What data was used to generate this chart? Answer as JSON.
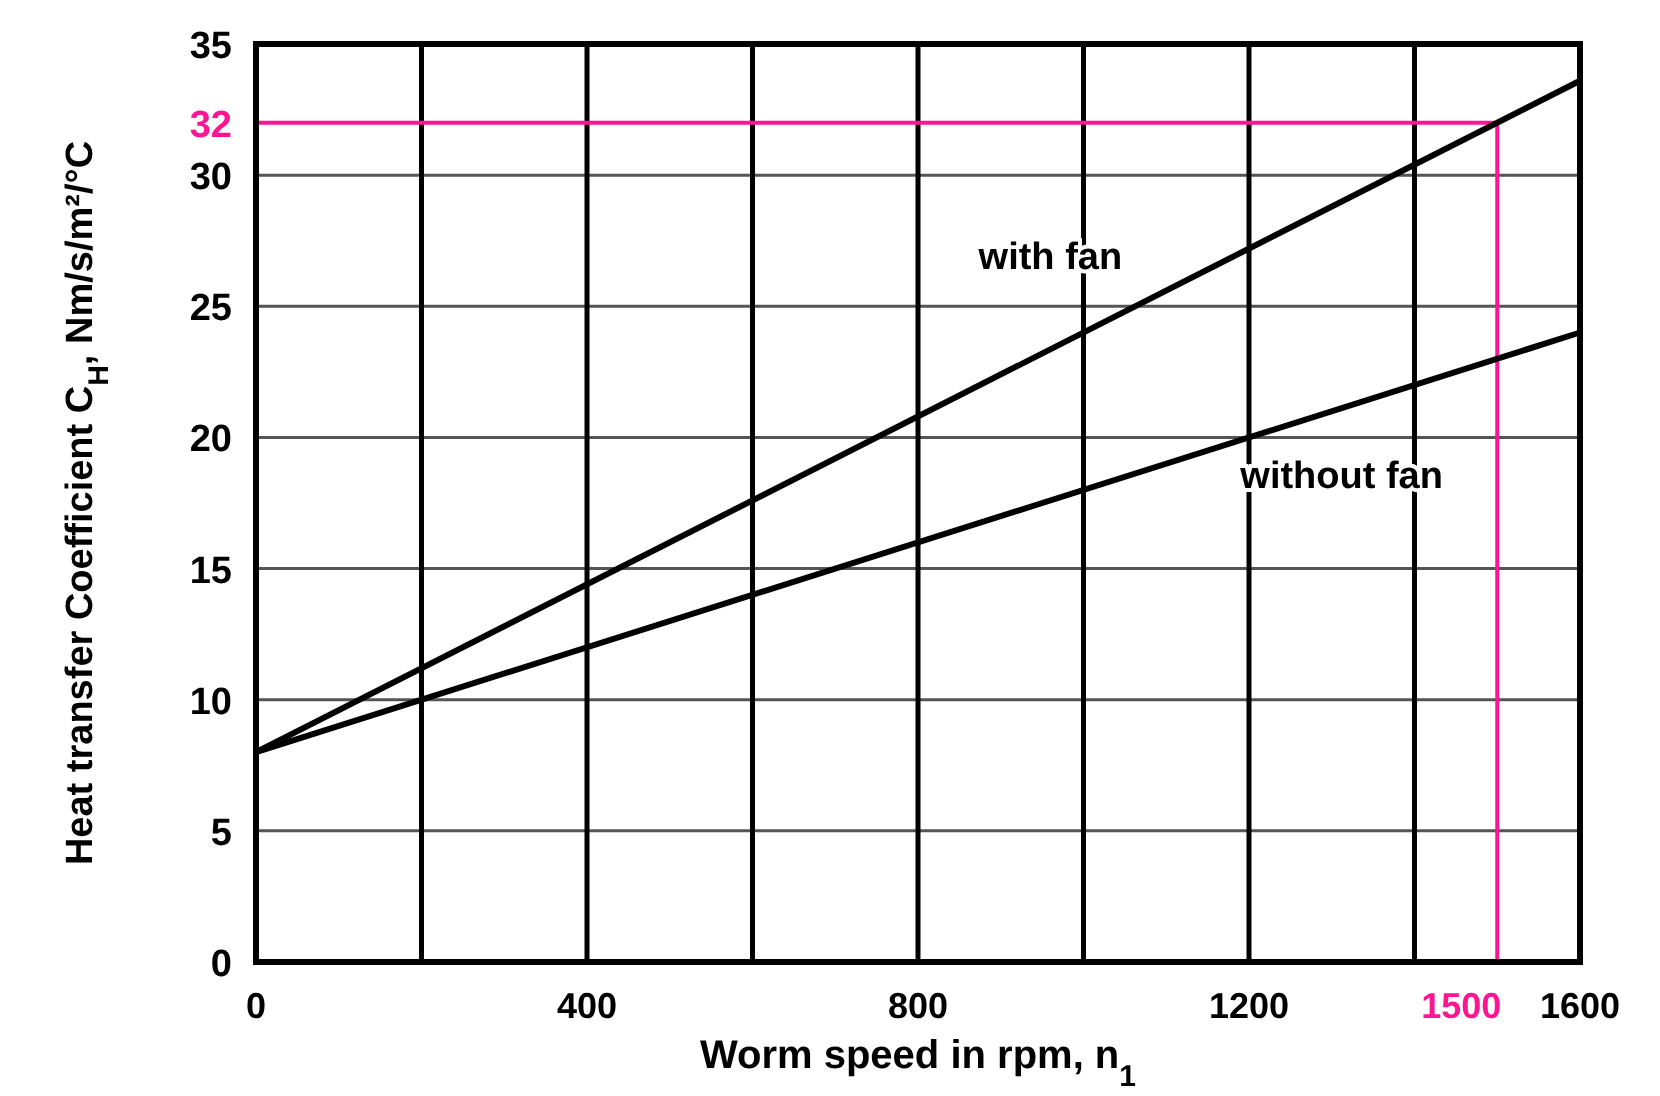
{
  "chart_data": {
    "type": "line",
    "xlabel": "Worm speed in rpm, n$_{1}$",
    "ylabel": "Heat transfer Coefficient C$_{H}$, Nm/s/m²/°C",
    "x": [
      0,
      1600
    ],
    "series": [
      {
        "name": "with fan",
        "color": "#000000",
        "values": [
          8,
          33.6
        ]
      },
      {
        "name": "without fan",
        "color": "#000000",
        "values": [
          8,
          24
        ]
      }
    ],
    "xlim": [
      0,
      1600
    ],
    "xticks": [
      0,
      {
        "value": 200,
        "label": null
      },
      400,
      {
        "value": 600,
        "label": null
      },
      800,
      {
        "value": 1000,
        "label": null
      },
      1200,
      {
        "value": 1400,
        "label": null
      },
      1600
    ],
    "ylim": [
      0,
      35
    ],
    "yticks": [
      0,
      5,
      10,
      15,
      20,
      25,
      30,
      35
    ],
    "grid": true,
    "marker": "none",
    "line_style": "solid",
    "ref_lines": [
      {
        "axis": "y",
        "value": 32,
        "label": "32",
        "color": "#ff1493"
      },
      {
        "axis": "x",
        "value": 1500,
        "label": "1500",
        "color": "#ff1493"
      }
    ]
  }
}
